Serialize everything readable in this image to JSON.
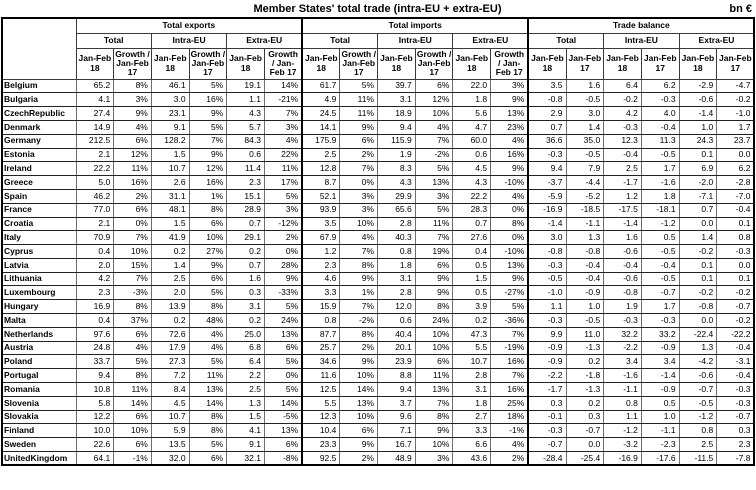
{
  "title": "Member States' total trade (intra-EU + extra-EU)",
  "unit": "bn €",
  "table": {
    "groups": [
      {
        "label": "Total exports"
      },
      {
        "label": "Total imports"
      },
      {
        "label": "Trade balance"
      }
    ],
    "subgroups": [
      "Total",
      "Intra-EU",
      "Extra-EU"
    ],
    "col_headers": {
      "period_18": "Jan-Feb 18",
      "growth": "Growth / Jan-Feb 17",
      "period_17": "Jan-Feb 17"
    },
    "rows": [
      {
        "country": "Belgium",
        "values": [
          "65.2",
          "8%",
          "46.1",
          "5%",
          "19.1",
          "14%",
          "61.7",
          "5%",
          "39.7",
          "6%",
          "22.0",
          "3%",
          "3.5",
          "1.6",
          "6.4",
          "6.2",
          "-2.9",
          "-4.7"
        ]
      },
      {
        "country": "Bulgaria",
        "values": [
          "4.1",
          "3%",
          "3.0",
          "16%",
          "1.1",
          "-21%",
          "4.9",
          "11%",
          "3.1",
          "12%",
          "1.8",
          "9%",
          "-0.8",
          "-0.5",
          "-0.2",
          "-0.3",
          "-0.6",
          "-0.2"
        ]
      },
      {
        "country": "CzechRepublic",
        "values": [
          "27.4",
          "9%",
          "23.1",
          "9%",
          "4.3",
          "7%",
          "24.5",
          "11%",
          "18.9",
          "10%",
          "5.6",
          "13%",
          "2.9",
          "3.0",
          "4.2",
          "4.0",
          "-1.4",
          "-1.0"
        ]
      },
      {
        "country": "Denmark",
        "values": [
          "14.9",
          "4%",
          "9.1",
          "5%",
          "5.7",
          "3%",
          "14.1",
          "9%",
          "9.4",
          "4%",
          "4.7",
          "23%",
          "0.7",
          "1.4",
          "-0.3",
          "-0.4",
          "1.0",
          "1.7"
        ]
      },
      {
        "country": "Germany",
        "values": [
          "212.5",
          "6%",
          "128.2",
          "7%",
          "84.3",
          "4%",
          "175.9",
          "6%",
          "115.9",
          "7%",
          "60.0",
          "4%",
          "36.6",
          "35.0",
          "12.3",
          "11.3",
          "24.3",
          "23.7"
        ]
      },
      {
        "country": "Estonia",
        "values": [
          "2.1",
          "12%",
          "1.5",
          "9%",
          "0.6",
          "22%",
          "2.5",
          "2%",
          "1.9",
          "-2%",
          "0.6",
          "16%",
          "-0.3",
          "-0.5",
          "-0.4",
          "-0.5",
          "0.1",
          "0.0"
        ]
      },
      {
        "country": "Ireland",
        "values": [
          "22.2",
          "11%",
          "10.7",
          "12%",
          "11.4",
          "11%",
          "12.8",
          "7%",
          "8.3",
          "5%",
          "4.5",
          "9%",
          "9.4",
          "7.9",
          "2.5",
          "1.7",
          "6.9",
          "6.2"
        ]
      },
      {
        "country": "Greece",
        "values": [
          "5.0",
          "16%",
          "2.6",
          "16%",
          "2.3",
          "17%",
          "8.7",
          "0%",
          "4.3",
          "13%",
          "4.3",
          "-10%",
          "-3.7",
          "-4.4",
          "-1.7",
          "-1.6",
          "-2.0",
          "-2.8"
        ]
      },
      {
        "country": "Spain",
        "values": [
          "46.2",
          "2%",
          "31.1",
          "1%",
          "15.1",
          "5%",
          "52.1",
          "3%",
          "29.9",
          "3%",
          "22.2",
          "4%",
          "-5.9",
          "-5.2",
          "1.2",
          "1.8",
          "-7.1",
          "-7.0"
        ]
      },
      {
        "country": "France",
        "values": [
          "77.0",
          "6%",
          "48.1",
          "8%",
          "28.9",
          "3%",
          "93.9",
          "3%",
          "65.6",
          "5%",
          "28.3",
          "0%",
          "-16.9",
          "-18.5",
          "-17.5",
          "-18.1",
          "0.7",
          "-0.4"
        ]
      },
      {
        "country": "Croatia",
        "values": [
          "2.1",
          "0%",
          "1.5",
          "6%",
          "0.7",
          "-12%",
          "3.5",
          "10%",
          "2.8",
          "11%",
          "0.7",
          "8%",
          "-1.4",
          "-1.1",
          "-1.4",
          "-1.2",
          "0.0",
          "0.1"
        ]
      },
      {
        "country": "Italy",
        "values": [
          "70.9",
          "7%",
          "41.9",
          "10%",
          "29.1",
          "2%",
          "67.9",
          "4%",
          "40.3",
          "7%",
          "27.6",
          "0%",
          "3.0",
          "1.3",
          "1.6",
          "0.5",
          "1.4",
          "0.8"
        ]
      },
      {
        "country": "Cyprus",
        "values": [
          "0.4",
          "10%",
          "0.2",
          "27%",
          "0.2",
          "0%",
          "1.2",
          "7%",
          "0.8",
          "19%",
          "0.4",
          "-10%",
          "-0.8",
          "-0.8",
          "-0.6",
          "-0.5",
          "-0.2",
          "-0.3"
        ]
      },
      {
        "country": "Latvia",
        "values": [
          "2.0",
          "15%",
          "1.4",
          "9%",
          "0.7",
          "28%",
          "2.3",
          "8%",
          "1.8",
          "6%",
          "0.5",
          "13%",
          "-0.3",
          "-0.4",
          "-0.4",
          "-0.4",
          "0.1",
          "0.0"
        ]
      },
      {
        "country": "Lithuania",
        "values": [
          "4.2",
          "7%",
          "2.5",
          "6%",
          "1.6",
          "9%",
          "4.6",
          "9%",
          "3.1",
          "9%",
          "1.5",
          "9%",
          "-0.5",
          "-0.4",
          "-0.6",
          "-0.5",
          "0.1",
          "0.1"
        ]
      },
      {
        "country": "Luxembourg",
        "values": [
          "2.3",
          "-3%",
          "2.0",
          "5%",
          "0.3",
          "-33%",
          "3.3",
          "1%",
          "2.8",
          "9%",
          "0.5",
          "-27%",
          "-1.0",
          "-0.9",
          "-0.8",
          "-0.7",
          "-0.2",
          "-0.2"
        ]
      },
      {
        "country": "Hungary",
        "values": [
          "16.9",
          "8%",
          "13.9",
          "8%",
          "3.1",
          "5%",
          "15.9",
          "7%",
          "12.0",
          "8%",
          "3.9",
          "5%",
          "1.1",
          "1.0",
          "1.9",
          "1.7",
          "-0.8",
          "-0.7"
        ]
      },
      {
        "country": "Malta",
        "values": [
          "0.4",
          "37%",
          "0.2",
          "48%",
          "0.2",
          "24%",
          "0.8",
          "-2%",
          "0.6",
          "24%",
          "0.2",
          "-36%",
          "-0.3",
          "-0.5",
          "-0.3",
          "-0.3",
          "0.0",
          "-0.2"
        ]
      },
      {
        "country": "Netherlands",
        "values": [
          "97.6",
          "6%",
          "72.6",
          "4%",
          "25.0",
          "13%",
          "87.7",
          "8%",
          "40.4",
          "10%",
          "47.3",
          "7%",
          "9.9",
          "11.0",
          "32.2",
          "33.2",
          "-22.4",
          "-22.2"
        ]
      },
      {
        "country": "Austria",
        "values": [
          "24.8",
          "4%",
          "17.9",
          "4%",
          "6.8",
          "6%",
          "25.7",
          "2%",
          "20.1",
          "10%",
          "5.5",
          "-19%",
          "-0.9",
          "-1.3",
          "-2.2",
          "-0.9",
          "1.3",
          "-0.4"
        ]
      },
      {
        "country": "Poland",
        "values": [
          "33.7",
          "5%",
          "27.3",
          "5%",
          "6.4",
          "5%",
          "34.6",
          "9%",
          "23.9",
          "6%",
          "10.7",
          "16%",
          "-0.9",
          "0.2",
          "3.4",
          "3.4",
          "-4.2",
          "-3.1"
        ]
      },
      {
        "country": "Portugal",
        "values": [
          "9.4",
          "8%",
          "7.2",
          "11%",
          "2.2",
          "0%",
          "11.6",
          "10%",
          "8.8",
          "11%",
          "2.8",
          "7%",
          "-2.2",
          "-1.8",
          "-1.6",
          "-1.4",
          "-0.6",
          "-0.4"
        ]
      },
      {
        "country": "Romania",
        "values": [
          "10.8",
          "11%",
          "8.4",
          "13%",
          "2.5",
          "5%",
          "12.5",
          "14%",
          "9.4",
          "13%",
          "3.1",
          "16%",
          "-1.7",
          "-1.3",
          "-1.1",
          "-0.9",
          "-0.7",
          "-0.3"
        ]
      },
      {
        "country": "Slovenia",
        "values": [
          "5.8",
          "14%",
          "4.5",
          "14%",
          "1.3",
          "14%",
          "5.5",
          "13%",
          "3.7",
          "7%",
          "1.8",
          "25%",
          "0.3",
          "0.2",
          "0.8",
          "0.5",
          "-0.5",
          "-0.3"
        ]
      },
      {
        "country": "Slovakia",
        "values": [
          "12.2",
          "6%",
          "10.7",
          "8%",
          "1.5",
          "-5%",
          "12.3",
          "10%",
          "9.6",
          "8%",
          "2.7",
          "18%",
          "-0.1",
          "0.3",
          "1.1",
          "1.0",
          "-1.2",
          "-0.7"
        ]
      },
      {
        "country": "Finland",
        "values": [
          "10.0",
          "10%",
          "5.9",
          "8%",
          "4.1",
          "13%",
          "10.4",
          "6%",
          "7.1",
          "9%",
          "3.3",
          "-1%",
          "-0.3",
          "-0.7",
          "-1.2",
          "-1.1",
          "0.8",
          "0.3"
        ]
      },
      {
        "country": "Sweden",
        "values": [
          "22.6",
          "6%",
          "13.5",
          "5%",
          "9.1",
          "6%",
          "23.3",
          "9%",
          "16.7",
          "10%",
          "6.6",
          "4%",
          "-0.7",
          "0.0",
          "-3.2",
          "-2.3",
          "2.5",
          "2.3"
        ]
      },
      {
        "country": "UnitedKingdom",
        "values": [
          "64.1",
          "-1%",
          "32.0",
          "6%",
          "32.1",
          "-8%",
          "92.5",
          "2%",
          "48.9",
          "3%",
          "43.6",
          "2%",
          "-28.4",
          "-25.4",
          "-16.9",
          "-17.6",
          "-11.5",
          "-7.8"
        ]
      }
    ]
  }
}
